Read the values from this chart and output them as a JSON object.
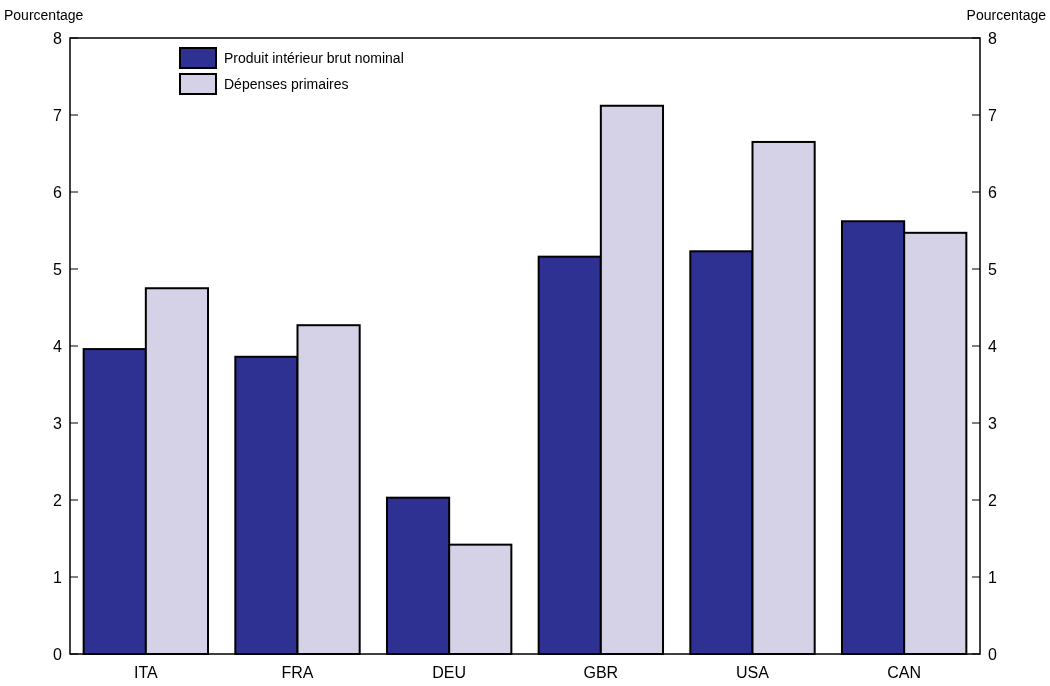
{
  "chart_data": {
    "type": "bar",
    "ylabel": "Pourcentage",
    "y2label": "Pourcentage",
    "categories": [
      "ITA",
      "FRA",
      "DEU",
      "GBR",
      "USA",
      "CAN"
    ],
    "series": [
      {
        "name": "Produit intérieur brut nominal",
        "color": "#2e3192",
        "values": [
          3.96,
          3.86,
          2.03,
          5.16,
          5.23,
          5.62
        ]
      },
      {
        "name": "Dépenses primaires",
        "color": "#d5d2e8",
        "values": [
          4.75,
          4.27,
          1.42,
          7.12,
          6.65,
          5.47
        ]
      }
    ],
    "ylim": [
      0,
      8
    ],
    "yticks": [
      0,
      1,
      2,
      3,
      4,
      5,
      6,
      7,
      8
    ],
    "y2lim": [
      0,
      8
    ],
    "y2ticks": [
      0,
      1,
      2,
      3,
      4,
      5,
      6,
      7,
      8
    ],
    "grid": false,
    "legend": "top left"
  }
}
